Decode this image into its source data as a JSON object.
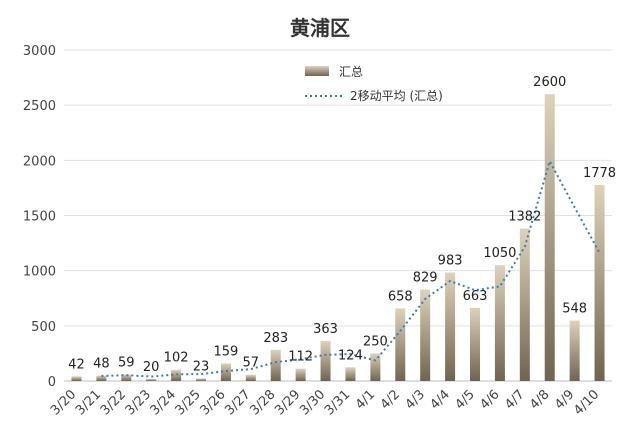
{
  "chart_data": {
    "type": "bar",
    "title": "黄浦区",
    "categories": [
      "3/20",
      "3/21",
      "3/22",
      "3/23",
      "3/24",
      "3/25",
      "3/26",
      "3/27",
      "3/28",
      "3/29",
      "3/30",
      "3/31",
      "4/1",
      "4/2",
      "4/3",
      "4/4",
      "4/5",
      "4/6",
      "4/7",
      "4/8",
      "4/9",
      "4/10"
    ],
    "series": [
      {
        "name": "汇总",
        "type": "bar",
        "values": [
          42,
          48,
          59,
          20,
          102,
          23,
          159,
          57,
          283,
          112,
          363,
          124,
          250,
          658,
          829,
          983,
          663,
          1050,
          1382,
          2600,
          548,
          1778
        ]
      },
      {
        "name": "2移动平均 (汇总)",
        "type": "line",
        "style": "dotted",
        "values": [
          null,
          45,
          53.5,
          39.5,
          61,
          62.5,
          91,
          108,
          170,
          197.5,
          237.5,
          243.5,
          187,
          454,
          743.5,
          906,
          823,
          856.5,
          1216,
          1991,
          1574,
          1163
        ]
      }
    ],
    "y_ticks": [
      "0",
      "500",
      "1000",
      "1500",
      "2000",
      "2500",
      "3000"
    ],
    "ylim": [
      0,
      3000
    ],
    "grid": true,
    "legend_position": "top-center",
    "colors": {
      "bar_top": "#d8cdb2",
      "bar_bottom": "#6e6450",
      "line": "#3a7fa8",
      "grid": "#e2e2e2"
    }
  }
}
